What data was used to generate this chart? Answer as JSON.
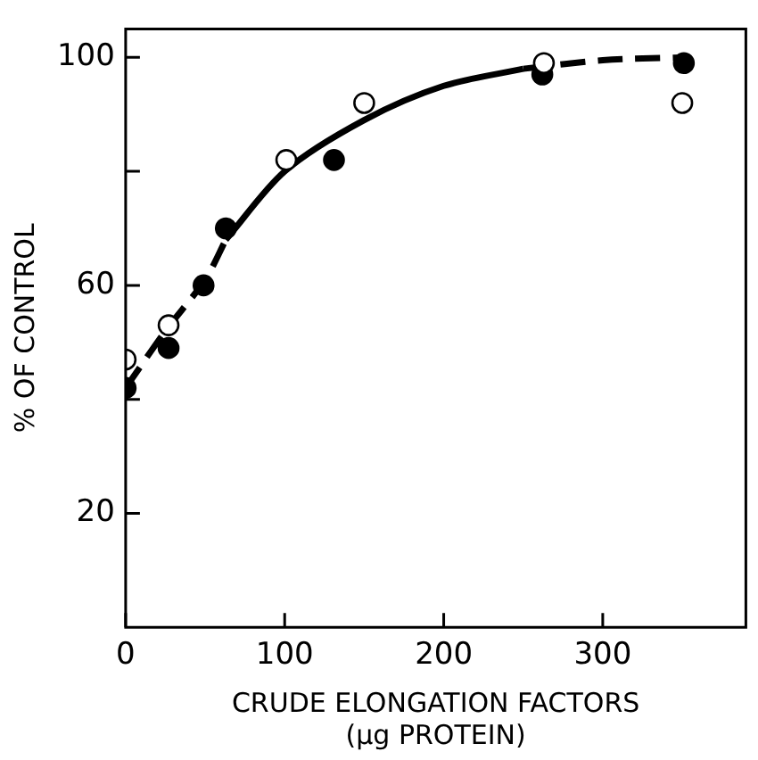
{
  "chart_data": {
    "type": "scatter",
    "xlabel": "CRUDE ELONGATION FACTORS\n(µg PROTEIN)",
    "ylabel": "% OF CONTROL",
    "xlim": [
      0,
      390
    ],
    "xticks": [
      0,
      100,
      200,
      300
    ],
    "ylim": [
      0,
      105
    ],
    "yticks": [
      {
        "value": 20,
        "label": "20"
      },
      {
        "value": 40,
        "label": null
      },
      {
        "value": 60,
        "label": "60"
      },
      {
        "value": 80,
        "label": null
      },
      {
        "value": 100,
        "label": "100"
      }
    ],
    "grid": false,
    "legend": false,
    "series": [
      {
        "marker": "circle",
        "color": "#000000",
        "x": [
          0,
          27,
          49,
          63,
          131,
          262,
          351
        ],
        "values": [
          42,
          49,
          60,
          70,
          82,
          97,
          99
        ]
      },
      {
        "marker": "circle",
        "color": "#ffffff",
        "x": [
          0,
          27,
          101,
          150,
          263,
          350
        ],
        "values": [
          47,
          53,
          82,
          92,
          99,
          92
        ]
      },
      {
        "type": "line",
        "marker": "none",
        "line_style": "dashed",
        "color": "#000000",
        "x": [
          0,
          25,
          50,
          63
        ],
        "values": [
          42,
          52,
          61,
          68
        ]
      },
      {
        "type": "line",
        "marker": "none",
        "line_style": "solid",
        "color": "#000000",
        "x": [
          63,
          100,
          150,
          200,
          250
        ],
        "values": [
          68,
          80,
          89,
          95,
          98
        ]
      },
      {
        "type": "line",
        "marker": "none",
        "line_style": "dashed",
        "color": "#000000",
        "x": [
          250,
          300,
          350
        ],
        "values": [
          98,
          99.5,
          100
        ]
      }
    ]
  }
}
